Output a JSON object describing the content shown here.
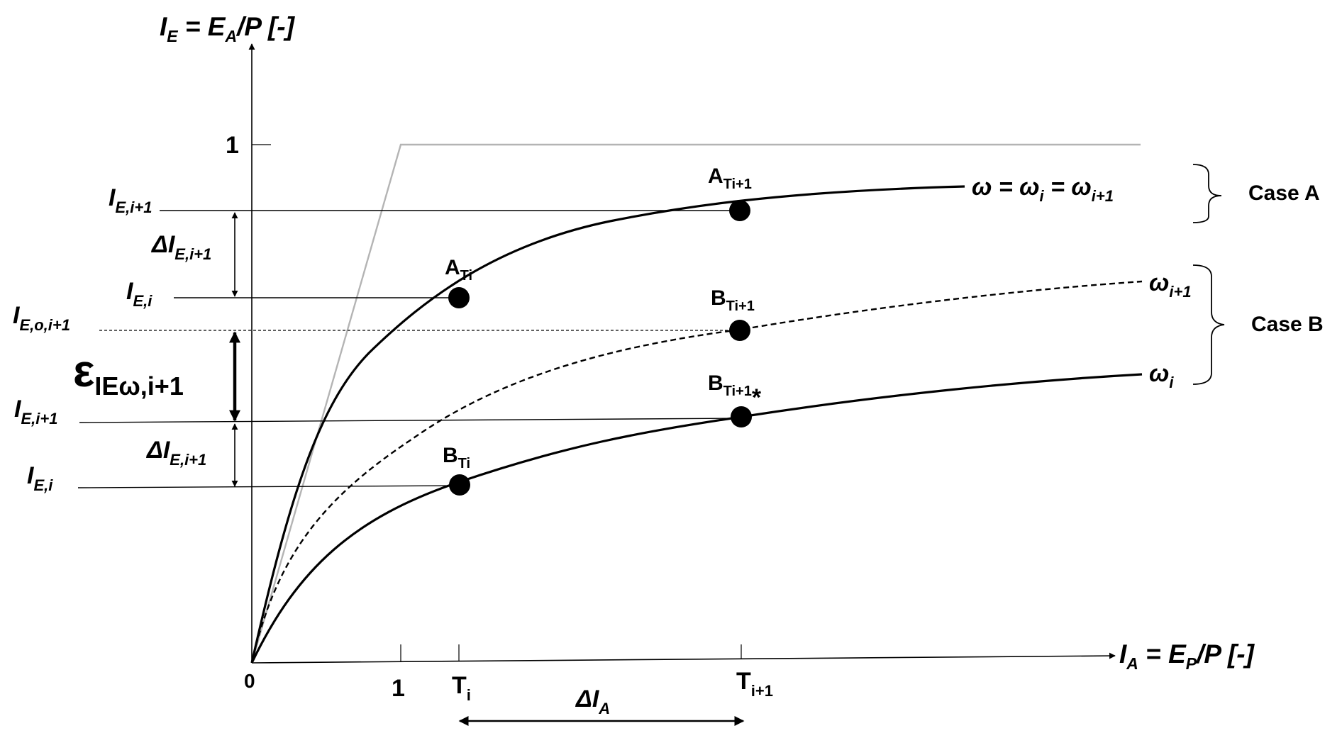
{
  "axes": {
    "y_label": {
      "main": "I",
      "sub": "E",
      "rest": " = E",
      "sub2": "A",
      "tail": "/P [-]"
    },
    "x_label": {
      "main": "I",
      "sub": "A",
      "rest": " = E",
      "sub2": "P",
      "tail": "/P [-]"
    },
    "origin": "0",
    "y_tick_one": "1",
    "x_tick_one": "1",
    "x_tick_ti": {
      "main": "T",
      "sub": "i"
    },
    "x_tick_ti1": {
      "main": "T",
      "sub": "i+1"
    }
  },
  "curves": {
    "omega_equal": {
      "w1": "ω = ω",
      "s1": "i",
      "w2": " = ω",
      "s2": "i+1"
    },
    "omega_i1": {
      "main": "ω",
      "sub": "i+1"
    },
    "omega_i": {
      "main": "ω",
      "sub": "i"
    }
  },
  "cases": {
    "a": "Case A",
    "b": "Case B"
  },
  "points": {
    "a_ti": {
      "main": "A",
      "sub": "Ti"
    },
    "a_ti1": {
      "main": "A",
      "sub": "Ti+1"
    },
    "b_ti": {
      "main": "B",
      "sub": "Ti"
    },
    "b_ti1": {
      "main": "B",
      "sub": "Ti+1"
    },
    "b_ti1_star": {
      "main": "B",
      "sub": "Ti+1",
      "mark": "*"
    }
  },
  "levels": {
    "a_ie_i1": {
      "main": "I",
      "sub": "E,i+1"
    },
    "a_delta": {
      "main": "ΔI",
      "sub": "E,i+1"
    },
    "a_ie_i": {
      "main": "I",
      "sub": "E,i"
    },
    "ie_o": {
      "main": "I",
      "sub": "E,o,i+1"
    },
    "epsilon": {
      "main": "ε",
      "sub": "IEω,i+1"
    },
    "b_ie_i1": {
      "main": "I",
      "sub": "E,i+1"
    },
    "b_delta": {
      "main": "ΔI",
      "sub": "E,i+1"
    },
    "b_ie_i": {
      "main": "I",
      "sub": "E,i"
    }
  },
  "delta_ia": {
    "main": "ΔI",
    "sub": "A"
  }
}
